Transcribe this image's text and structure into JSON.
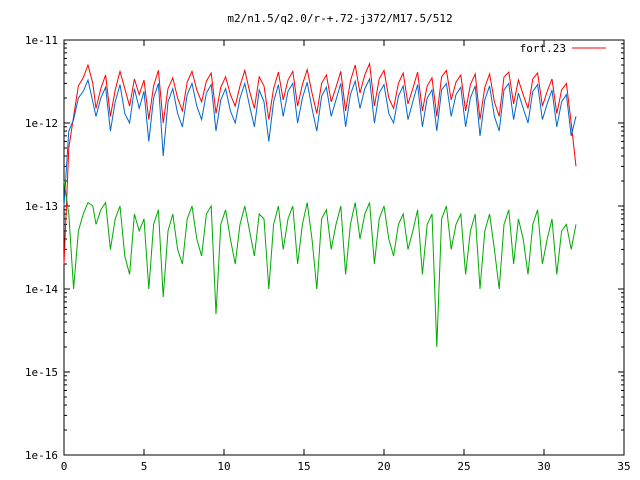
{
  "chart_data": {
    "type": "line",
    "title": "m2/n1.5/q2.0/r-+.72-j372/M17.5/512",
    "xlabel": "",
    "ylabel": "",
    "xlim": [
      0,
      35
    ],
    "ylim": [
      1e-16,
      1e-11
    ],
    "yscale": "log",
    "grid": false,
    "legend_position": "top-right",
    "x_ticks": [
      {
        "value": 0,
        "label": "0"
      },
      {
        "value": 5,
        "label": "5"
      },
      {
        "value": 10,
        "label": "10"
      },
      {
        "value": 15,
        "label": "15"
      },
      {
        "value": 20,
        "label": "20"
      },
      {
        "value": 25,
        "label": "25"
      },
      {
        "value": 30,
        "label": "30"
      },
      {
        "value": 35,
        "label": "35"
      }
    ],
    "y_ticks": [
      {
        "value": 1e-11,
        "label": "1e-11"
      },
      {
        "value": 1e-12,
        "label": "1e-12"
      },
      {
        "value": 1e-13,
        "label": "1e-13"
      },
      {
        "value": 1e-14,
        "label": "1e-14"
      },
      {
        "value": 1e-15,
        "label": "1e-15"
      },
      {
        "value": 1e-16,
        "label": "1e-16"
      }
    ],
    "series": [
      {
        "name": "fort.23",
        "color": "#ff0000",
        "x": [
          0,
          0.3,
          0.6,
          0.9,
          1.2,
          1.5,
          1.8,
          2.0,
          2.3,
          2.6,
          2.9,
          3.2,
          3.5,
          3.8,
          4.1,
          4.4,
          4.7,
          5.0,
          5.3,
          5.6,
          5.9,
          6.2,
          6.5,
          6.8,
          7.1,
          7.4,
          7.7,
          8.0,
          8.3,
          8.6,
          8.9,
          9.2,
          9.5,
          9.8,
          10.1,
          10.4,
          10.7,
          11.0,
          11.3,
          11.6,
          11.9,
          12.2,
          12.5,
          12.8,
          13.1,
          13.4,
          13.7,
          14.0,
          14.3,
          14.6,
          14.9,
          15.2,
          15.5,
          15.8,
          16.1,
          16.4,
          16.7,
          17.0,
          17.3,
          17.6,
          17.9,
          18.2,
          18.5,
          18.8,
          19.1,
          19.4,
          19.7,
          20.0,
          20.3,
          20.6,
          20.9,
          21.2,
          21.5,
          21.8,
          22.1,
          22.4,
          22.7,
          23.0,
          23.3,
          23.6,
          23.9,
          24.2,
          24.5,
          24.8,
          25.1,
          25.4,
          25.7,
          26.0,
          26.3,
          26.6,
          26.9,
          27.2,
          27.5,
          27.8,
          28.1,
          28.4,
          28.7,
          29.0,
          29.3,
          29.6,
          29.9,
          30.2,
          30.5,
          30.8,
          31.1,
          31.4,
          31.7,
          32.0
        ],
        "values": [
          2e-14,
          5e-13,
          1.2e-12,
          2.8e-12,
          3.5e-12,
          5e-12,
          3e-12,
          1.5e-12,
          2.6e-12,
          3.8e-12,
          1.2e-12,
          2.5e-12,
          4.2e-12,
          2.6e-12,
          1.6e-12,
          3.4e-12,
          2.2e-12,
          3.3e-12,
          1.1e-12,
          2.8e-12,
          4.3e-12,
          1e-12,
          2.6e-12,
          3.5e-12,
          2e-12,
          1.4e-12,
          3.1e-12,
          4.2e-12,
          2.5e-12,
          1.8e-12,
          3.2e-12,
          4e-12,
          1.3e-12,
          2.7e-12,
          3.6e-12,
          2.2e-12,
          1.6e-12,
          2.8e-12,
          4.3e-12,
          2.4e-12,
          1.5e-12,
          3.6e-12,
          2.8e-12,
          1.1e-12,
          2.6e-12,
          4.1e-12,
          1.9e-12,
          3.3e-12,
          4.2e-12,
          1.6e-12,
          2.9e-12,
          4.4e-12,
          2.3e-12,
          1.3e-12,
          3e-12,
          3.8e-12,
          1.8e-12,
          2.7e-12,
          4.2e-12,
          1.4e-12,
          3.2e-12,
          5e-12,
          2.3e-12,
          3.8e-12,
          5.2e-12,
          1.6e-12,
          3.4e-12,
          4.3e-12,
          2e-12,
          1.5e-12,
          3e-12,
          4e-12,
          1.7e-12,
          2.6e-12,
          4.1e-12,
          1.4e-12,
          2.8e-12,
          3.5e-12,
          1.2e-12,
          3.6e-12,
          4.3e-12,
          1.9e-12,
          3.1e-12,
          3.8e-12,
          1.4e-12,
          2.9e-12,
          3.9e-12,
          1.1e-12,
          2.7e-12,
          3.9e-12,
          1.8e-12,
          1.2e-12,
          3.6e-12,
          4.1e-12,
          1.7e-12,
          3.3e-12,
          2.2e-12,
          1.5e-12,
          3.4e-12,
          4e-12,
          1.6e-12,
          2.4e-12,
          3.4e-12,
          1.3e-12,
          2.5e-12,
          3e-12,
          1e-12,
          3e-13
        ]
      },
      {
        "color": "#0066cc",
        "x": [
          0,
          0.3,
          0.6,
          0.9,
          1.2,
          1.5,
          1.8,
          2.0,
          2.3,
          2.6,
          2.9,
          3.2,
          3.5,
          3.8,
          4.1,
          4.4,
          4.7,
          5.0,
          5.3,
          5.6,
          5.9,
          6.2,
          6.5,
          6.8,
          7.1,
          7.4,
          7.7,
          8.0,
          8.3,
          8.6,
          8.9,
          9.2,
          9.5,
          9.8,
          10.1,
          10.4,
          10.7,
          11.0,
          11.3,
          11.6,
          11.9,
          12.2,
          12.5,
          12.8,
          13.1,
          13.4,
          13.7,
          14.0,
          14.3,
          14.6,
          14.9,
          15.2,
          15.5,
          15.8,
          16.1,
          16.4,
          16.7,
          17.0,
          17.3,
          17.6,
          17.9,
          18.2,
          18.5,
          18.8,
          19.1,
          19.4,
          19.7,
          20.0,
          20.3,
          20.6,
          20.9,
          21.2,
          21.5,
          21.8,
          22.1,
          22.4,
          22.7,
          23.0,
          23.3,
          23.6,
          23.9,
          24.2,
          24.5,
          24.8,
          25.1,
          25.4,
          25.7,
          26.0,
          26.3,
          26.6,
          26.9,
          27.2,
          27.5,
          27.8,
          28.1,
          28.4,
          28.7,
          29.0,
          29.3,
          29.6,
          29.9,
          30.2,
          30.5,
          30.8,
          31.1,
          31.4,
          31.7,
          32.0
        ],
        "values": [
          1e-13,
          8e-13,
          1.1e-12,
          2e-12,
          2.4e-12,
          3.3e-12,
          1.8e-12,
          1.2e-12,
          2e-12,
          2.7e-12,
          8e-13,
          1.8e-12,
          2.9e-12,
          1.3e-12,
          1e-12,
          2.6e-12,
          1.5e-12,
          2.4e-12,
          6e-13,
          2e-12,
          3e-12,
          4e-13,
          1.8e-12,
          2.6e-12,
          1.3e-12,
          9e-13,
          2.2e-12,
          3e-12,
          1.6e-12,
          1.1e-12,
          2.3e-12,
          2.9e-12,
          8e-13,
          1.9e-12,
          2.6e-12,
          1.4e-12,
          1e-12,
          2e-12,
          3e-12,
          1.6e-12,
          9e-13,
          2.5e-12,
          1.8e-12,
          6e-13,
          1.8e-12,
          2.9e-12,
          1.2e-12,
          2.4e-12,
          3e-12,
          1e-12,
          2e-12,
          3.1e-12,
          1.5e-12,
          8e-13,
          2.1e-12,
          2.7e-12,
          1.2e-12,
          1.9e-12,
          3e-12,
          9e-13,
          2.2e-12,
          3.2e-12,
          1.5e-12,
          2.6e-12,
          3.4e-12,
          1e-12,
          2.3e-12,
          2.9e-12,
          1.3e-12,
          1e-12,
          2.1e-12,
          2.8e-12,
          1.1e-12,
          1.8e-12,
          2.9e-12,
          9e-13,
          2e-12,
          2.5e-12,
          8e-13,
          2.5e-12,
          3e-12,
          1.2e-12,
          2.2e-12,
          2.7e-12,
          9e-13,
          2e-12,
          2.8e-12,
          7e-13,
          1.9e-12,
          2.8e-12,
          1.2e-12,
          8e-13,
          2.5e-12,
          3e-12,
          1.1e-12,
          2.3e-12,
          1.5e-12,
          1e-12,
          2.4e-12,
          2.9e-12,
          1.1e-12,
          1.7e-12,
          2.5e-12,
          9e-13,
          1.8e-12,
          2.2e-12,
          7e-13,
          1.2e-12
        ]
      },
      {
        "color": "#00aa00",
        "x": [
          0,
          0.3,
          0.6,
          0.9,
          1.2,
          1.5,
          1.8,
          2.0,
          2.3,
          2.6,
          2.9,
          3.2,
          3.5,
          3.8,
          4.1,
          4.4,
          4.7,
          5.0,
          5.3,
          5.6,
          5.9,
          6.2,
          6.5,
          6.8,
          7.1,
          7.4,
          7.7,
          8.0,
          8.3,
          8.6,
          8.9,
          9.2,
          9.5,
          9.8,
          10.1,
          10.4,
          10.7,
          11.0,
          11.3,
          11.6,
          11.9,
          12.2,
          12.5,
          12.8,
          13.1,
          13.4,
          13.7,
          14.0,
          14.3,
          14.6,
          14.9,
          15.2,
          15.5,
          15.8,
          16.1,
          16.4,
          16.7,
          17.0,
          17.3,
          17.6,
          17.9,
          18.2,
          18.5,
          18.8,
          19.1,
          19.4,
          19.7,
          20.0,
          20.3,
          20.6,
          20.9,
          21.2,
          21.5,
          21.8,
          22.1,
          22.4,
          22.7,
          23.0,
          23.3,
          23.6,
          23.9,
          24.2,
          24.5,
          24.8,
          25.1,
          25.4,
          25.7,
          26.0,
          26.3,
          26.6,
          26.9,
          27.2,
          27.5,
          27.8,
          28.1,
          28.4,
          28.7,
          29.0,
          29.3,
          29.6,
          29.9,
          30.2,
          30.5,
          30.8,
          31.1,
          31.4,
          31.7,
          32.0
        ],
        "values": [
          2e-13,
          8e-14,
          1e-14,
          5e-14,
          8e-14,
          1.1e-13,
          1e-13,
          6e-14,
          9e-14,
          1.1e-13,
          3e-14,
          7e-14,
          1e-13,
          2.5e-14,
          1.5e-14,
          8e-14,
          5e-14,
          7e-14,
          1e-14,
          6e-14,
          9e-14,
          8e-15,
          5e-14,
          8e-14,
          3e-14,
          2e-14,
          7e-14,
          1e-13,
          4e-14,
          2.5e-14,
          8e-14,
          1e-13,
          5e-15,
          6e-14,
          9e-14,
          4e-14,
          2e-14,
          6e-14,
          1e-13,
          5e-14,
          2.5e-14,
          8e-14,
          7e-14,
          1e-14,
          6e-14,
          1e-13,
          3e-14,
          7e-14,
          1e-13,
          2e-14,
          6e-14,
          1.1e-13,
          4e-14,
          1e-14,
          7e-14,
          9e-14,
          3e-14,
          6e-14,
          1e-13,
          1.5e-14,
          6e-14,
          1.1e-13,
          4e-14,
          8e-14,
          1.1e-13,
          2e-14,
          7e-14,
          1e-13,
          4e-14,
          2.5e-14,
          6e-14,
          8e-14,
          3e-14,
          5e-14,
          9e-14,
          1.5e-14,
          6e-14,
          8e-14,
          2e-15,
          7e-14,
          1e-13,
          3e-14,
          6e-14,
          8e-14,
          1.5e-14,
          5e-14,
          8e-14,
          1e-14,
          5e-14,
          8e-14,
          3e-14,
          1e-14,
          6e-14,
          9e-14,
          2e-14,
          7e-14,
          4e-14,
          1.5e-14,
          6e-14,
          9e-14,
          2e-14,
          4e-14,
          7e-14,
          1.5e-14,
          5e-14,
          6e-14,
          3e-14,
          6e-14
        ]
      }
    ]
  }
}
